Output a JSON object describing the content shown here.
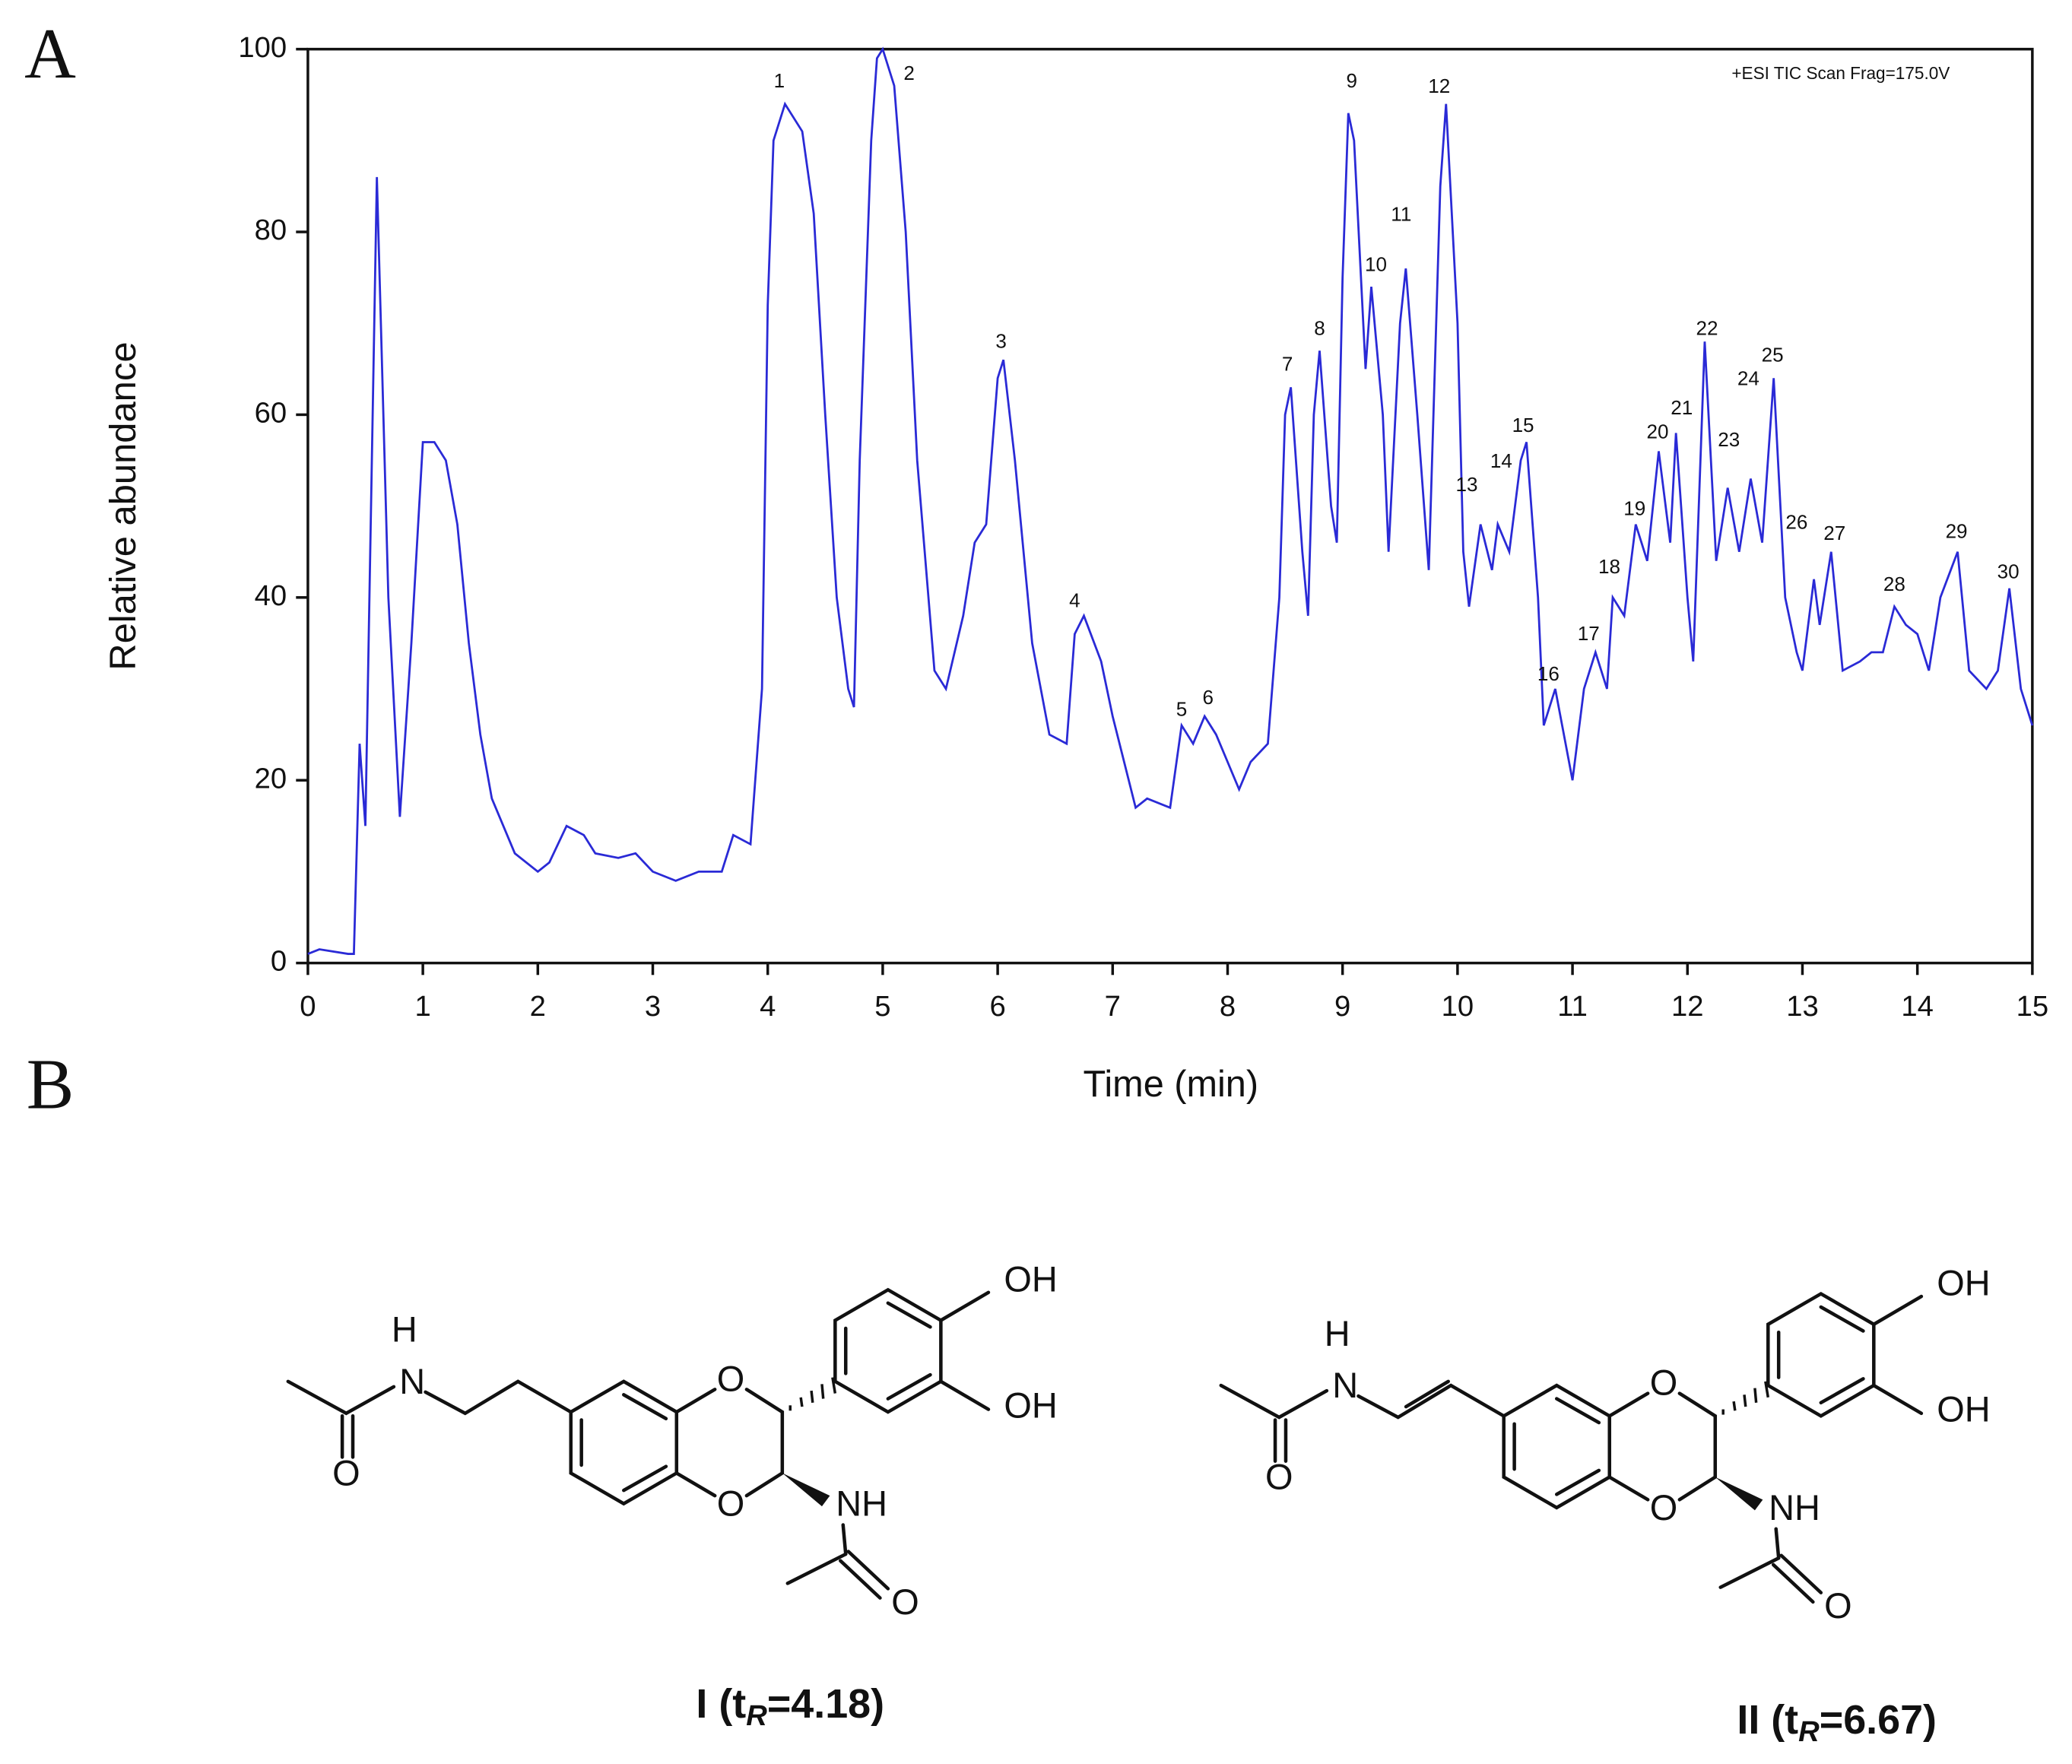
{
  "panel_labels": [
    "A",
    "B"
  ],
  "chart_data": {
    "type": "line",
    "annotation": "+ESI TIC Scan Frag=175.0V",
    "xlabel": "Time (min)",
    "ylabel": "Relative abundance",
    "xlim": [
      0,
      15
    ],
    "xticks": [
      0,
      1,
      2,
      3,
      4,
      5,
      6,
      7,
      8,
      9,
      10,
      11,
      12,
      13,
      14,
      15
    ],
    "ylim": [
      0,
      100
    ],
    "yticks": [
      0,
      20,
      40,
      60,
      80,
      100
    ],
    "series": [
      {
        "color": "#2a2ad6",
        "x": [
          0,
          0.1,
          0.35,
          0.4,
          0.45,
          0.5,
          0.6,
          0.7,
          0.8,
          0.9,
          1.0,
          1.1,
          1.2,
          1.3,
          1.4,
          1.5,
          1.6,
          1.8,
          2.0,
          2.1,
          2.25,
          2.4,
          2.5,
          2.7,
          2.85,
          3.0,
          3.2,
          3.4,
          3.6,
          3.7,
          3.85,
          3.95,
          4.0,
          4.05,
          4.15,
          4.3,
          4.4,
          4.5,
          4.6,
          4.7,
          4.75,
          4.8,
          4.9,
          4.95,
          5.0,
          5.1,
          5.2,
          5.3,
          5.45,
          5.55,
          5.7,
          5.8,
          5.9,
          6.0,
          6.05,
          6.15,
          6.3,
          6.45,
          6.6,
          6.67,
          6.75,
          6.9,
          7.0,
          7.1,
          7.2,
          7.3,
          7.5,
          7.6,
          7.7,
          7.8,
          7.9,
          8.0,
          8.1,
          8.2,
          8.35,
          8.45,
          8.5,
          8.55,
          8.65,
          8.7,
          8.75,
          8.8,
          8.9,
          8.95,
          9.0,
          9.05,
          9.1,
          9.2,
          9.25,
          9.35,
          9.4,
          9.5,
          9.55,
          9.65,
          9.75,
          9.85,
          9.9,
          10.0,
          10.05,
          10.1,
          10.2,
          10.3,
          10.35,
          10.45,
          10.55,
          10.6,
          10.7,
          10.75,
          10.85,
          11.0,
          11.1,
          11.2,
          11.3,
          11.35,
          11.45,
          11.55,
          11.65,
          11.75,
          11.85,
          11.9,
          12.0,
          12.05,
          12.15,
          12.25,
          12.35,
          12.45,
          12.55,
          12.65,
          12.75,
          12.85,
          12.95,
          13.0,
          13.1,
          13.15,
          13.25,
          13.35,
          13.5,
          13.6,
          13.7,
          13.8,
          13.9,
          14.0,
          14.1,
          14.2,
          14.35,
          14.45,
          14.6,
          14.7,
          14.8,
          14.9,
          15.0
        ],
        "values": [
          1,
          1.5,
          1,
          1,
          24,
          15,
          86,
          40,
          16,
          35,
          57,
          57,
          55,
          48,
          35,
          25,
          18,
          12,
          10,
          11,
          15,
          14,
          12,
          11.5,
          12,
          10,
          9,
          10,
          10,
          14,
          13,
          30,
          72,
          90,
          94,
          91,
          82,
          60,
          40,
          30,
          28,
          55,
          90,
          99,
          100,
          96,
          80,
          55,
          32,
          30,
          38,
          46,
          48,
          64,
          66,
          55,
          35,
          25,
          24,
          36,
          38,
          33,
          27,
          22,
          17,
          18,
          17,
          26,
          24,
          27,
          25,
          22,
          19,
          22,
          24,
          40,
          60,
          63,
          45,
          38,
          60,
          67,
          50,
          46,
          75,
          93,
          90,
          65,
          74,
          60,
          45,
          70,
          76,
          60,
          43,
          85,
          94,
          70,
          45,
          39,
          48,
          43,
          48,
          45,
          55,
          57,
          40,
          26,
          30,
          20,
          30,
          34,
          30,
          40,
          38,
          48,
          44,
          56,
          46,
          58,
          40,
          33,
          68,
          44,
          52,
          45,
          53,
          46,
          64,
          40,
          34,
          32,
          42,
          37,
          45,
          32,
          33,
          34,
          34,
          39,
          37,
          36,
          32,
          40,
          45,
          32,
          30,
          32,
          41,
          30,
          26
        ]
      }
    ],
    "peak_labels": [
      {
        "text": "1",
        "x": 4.1,
        "y": 96.4
      },
      {
        "text": "2",
        "x": 5.23,
        "y": 97.2
      },
      {
        "text": "3",
        "x": 6.03,
        "y": 67.9
      },
      {
        "text": "4",
        "x": 6.67,
        "y": 39.5
      },
      {
        "text": "5",
        "x": 7.6,
        "y": 27.6
      },
      {
        "text": "6",
        "x": 7.83,
        "y": 28.9
      },
      {
        "text": "7",
        "x": 8.52,
        "y": 65.4
      },
      {
        "text": "8",
        "x": 8.8,
        "y": 69.3
      },
      {
        "text": "9",
        "x": 9.08,
        "y": 96.4
      },
      {
        "text": "10",
        "x": 9.29,
        "y": 76.3
      },
      {
        "text": "11",
        "x": 9.51,
        "y": 81.8
      },
      {
        "text": "12",
        "x": 9.84,
        "y": 95.8
      },
      {
        "text": "13",
        "x": 10.08,
        "y": 52.2
      },
      {
        "text": "14",
        "x": 10.38,
        "y": 54.8
      },
      {
        "text": "15",
        "x": 10.57,
        "y": 58.7
      },
      {
        "text": "16",
        "x": 10.79,
        "y": 31.5
      },
      {
        "text": "17",
        "x": 11.14,
        "y": 35.9
      },
      {
        "text": "18",
        "x": 11.32,
        "y": 43.2
      },
      {
        "text": "19",
        "x": 11.54,
        "y": 49.6
      },
      {
        "text": "20",
        "x": 11.74,
        "y": 58
      },
      {
        "text": "21",
        "x": 11.95,
        "y": 60.6
      },
      {
        "text": "22",
        "x": 12.17,
        "y": 69.3
      },
      {
        "text": "23",
        "x": 12.36,
        "y": 57.1
      },
      {
        "text": "24",
        "x": 12.53,
        "y": 63.8
      },
      {
        "text": "25",
        "x": 12.74,
        "y": 66.4
      },
      {
        "text": "26",
        "x": 12.95,
        "y": 48.1
      },
      {
        "text": "27",
        "x": 13.28,
        "y": 46.9
      },
      {
        "text": "28",
        "x": 13.8,
        "y": 41.3
      },
      {
        "text": "29",
        "x": 14.34,
        "y": 47.1
      },
      {
        "text": "30",
        "x": 14.79,
        "y": 42.7
      }
    ]
  },
  "structures": [
    {
      "atoms": [
        "H",
        "N",
        "O",
        "O",
        "O",
        "OH",
        "OH",
        "NH",
        "O"
      ],
      "caption": {
        "prefix": "I (t",
        "subscript": "R",
        "suffix": "=4.18)"
      }
    },
    {
      "atoms": [
        "H",
        "N",
        "O",
        "O",
        "O",
        "OH",
        "OH",
        "NH",
        "O"
      ],
      "caption": {
        "prefix": "II (t",
        "subscript": "R",
        "suffix": "=6.67)"
      }
    }
  ]
}
